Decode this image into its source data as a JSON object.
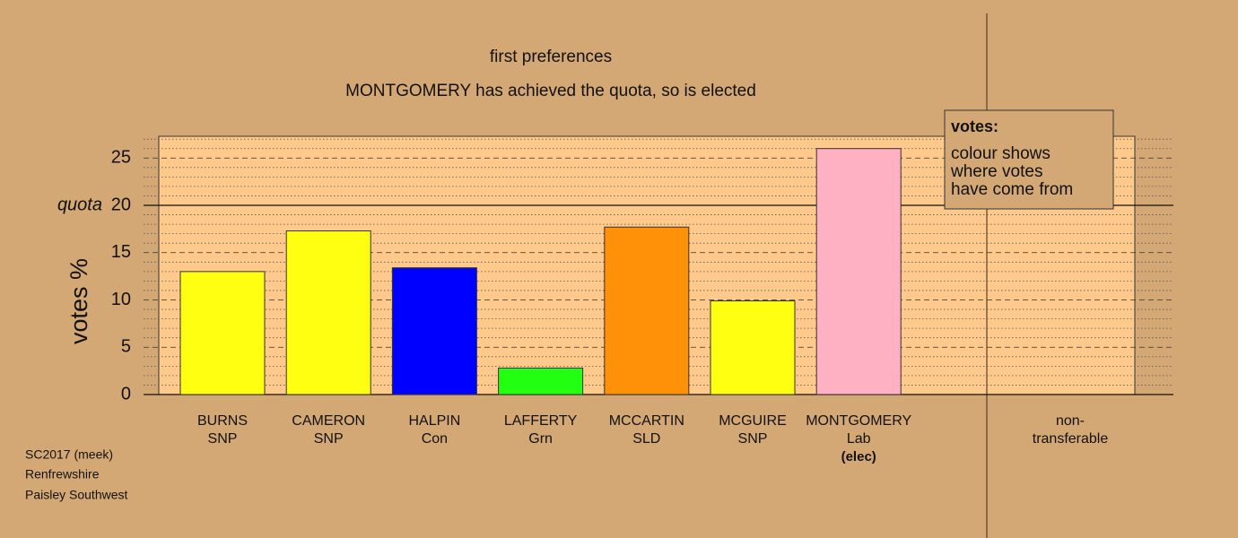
{
  "chart_data": {
    "type": "bar",
    "title": "first preferences",
    "subtitle": "MONTGOMERY has achieved the quota, so is elected",
    "y_label": "votes %",
    "categories": [
      [
        "BURNS",
        "SNP"
      ],
      [
        "CAMERON",
        "SNP"
      ],
      [
        "HALPIN",
        "Con"
      ],
      [
        "LAFFERTY",
        "Grn"
      ],
      [
        "MCCARTIN",
        "SLD"
      ],
      [
        "MCGUIRE",
        "SNP"
      ],
      [
        "MONTGOMERY",
        "Lab"
      ],
      [
        "non-",
        "transferable"
      ]
    ],
    "elected_labels": [
      null,
      null,
      null,
      null,
      null,
      null,
      "(elec)",
      null
    ],
    "values": [
      13.0,
      17.3,
      13.4,
      2.8,
      17.7,
      9.9,
      26.0,
      null
    ],
    "colors": [
      "#ffff11",
      "#ffff11",
      "#0000ff",
      "#22ff11",
      "#ff9108",
      "#ffff11",
      "#ffb1c4",
      null
    ],
    "ylim": [
      0,
      27.3
    ],
    "yticks": [
      0,
      5,
      10,
      15,
      20,
      25
    ],
    "minor_yticks": [
      1,
      2,
      3,
      4,
      6,
      7,
      8,
      9,
      11,
      12,
      13,
      14,
      16,
      17,
      18,
      19,
      21,
      22,
      23,
      24,
      26,
      27
    ],
    "quota": {
      "value": 20,
      "label": "quota"
    },
    "legend_box": {
      "title": "votes:",
      "lines": [
        "colour shows",
        "where votes",
        "have come from"
      ]
    },
    "footer": [
      "SC2017 (meek)",
      "Renfrewshire",
      "Paisley Southwest"
    ]
  }
}
